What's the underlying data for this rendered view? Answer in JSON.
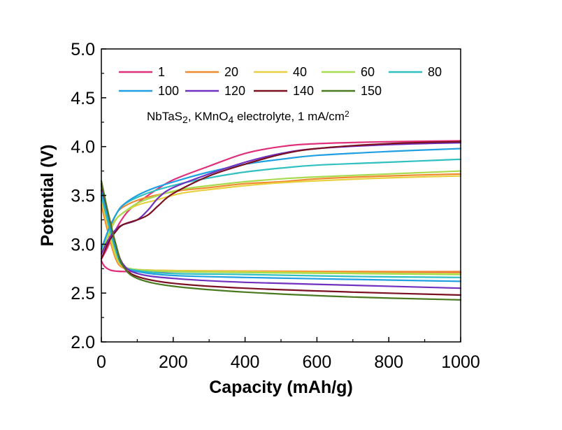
{
  "chart_data": {
    "type": "line",
    "title": "",
    "annotation": {
      "parts": [
        {
          "t": "NbTaS",
          "sub": false
        },
        {
          "t": "2",
          "sub": true
        },
        {
          "t": ", KMnO",
          "sub": false
        },
        {
          "t": "4",
          "sub": true
        },
        {
          "t": " electrolyte, 1 mA/cm",
          "sub": false
        },
        {
          "t": "2",
          "sup": true
        }
      ]
    },
    "xlabel": "Capacity (mAh/g)",
    "ylabel": "Potential (V)",
    "xlim": [
      0,
      1000
    ],
    "ylim": [
      2.0,
      5.0
    ],
    "xticks": [
      0,
      200,
      400,
      600,
      800,
      1000
    ],
    "yticks": [
      "2.0",
      "2.5",
      "3.0",
      "3.5",
      "4.0",
      "4.5",
      "5.0"
    ],
    "grid": false,
    "legend_placement": "top-left",
    "series": [
      {
        "name": "1",
        "color": "#e0307a",
        "charge": [
          [
            0,
            2.85
          ],
          [
            15,
            2.95
          ],
          [
            40,
            3.15
          ],
          [
            70,
            3.32
          ],
          [
            100,
            3.42
          ],
          [
            150,
            3.55
          ],
          [
            200,
            3.66
          ],
          [
            300,
            3.8
          ],
          [
            400,
            3.93
          ],
          [
            500,
            4.0
          ],
          [
            600,
            4.03
          ],
          [
            800,
            4.05
          ],
          [
            1000,
            4.06
          ]
        ],
        "discharge": [
          [
            0,
            2.83
          ],
          [
            10,
            2.77
          ],
          [
            30,
            2.73
          ],
          [
            70,
            2.72
          ],
          [
            150,
            2.72
          ],
          [
            400,
            2.715
          ],
          [
            700,
            2.71
          ],
          [
            1000,
            2.71
          ]
        ]
      },
      {
        "name": "20",
        "color": "#f08a30",
        "charge": [
          [
            0,
            2.9
          ],
          [
            20,
            3.1
          ],
          [
            40,
            3.3
          ],
          [
            60,
            3.38
          ],
          [
            100,
            3.45
          ],
          [
            150,
            3.5
          ],
          [
            220,
            3.55
          ],
          [
            300,
            3.58
          ],
          [
            400,
            3.62
          ],
          [
            500,
            3.64
          ],
          [
            600,
            3.67
          ],
          [
            800,
            3.7
          ],
          [
            1000,
            3.72
          ]
        ],
        "discharge": [
          [
            0,
            3.4
          ],
          [
            20,
            3.1
          ],
          [
            40,
            2.85
          ],
          [
            60,
            2.76
          ],
          [
            100,
            2.74
          ],
          [
            200,
            2.73
          ],
          [
            400,
            2.725
          ],
          [
            700,
            2.72
          ],
          [
            1000,
            2.72
          ]
        ]
      },
      {
        "name": "40",
        "color": "#e8d040",
        "charge": [
          [
            0,
            2.92
          ],
          [
            20,
            3.1
          ],
          [
            40,
            3.25
          ],
          [
            60,
            3.32
          ],
          [
            100,
            3.4
          ],
          [
            150,
            3.45
          ],
          [
            220,
            3.52
          ],
          [
            300,
            3.56
          ],
          [
            400,
            3.6
          ],
          [
            500,
            3.63
          ],
          [
            600,
            3.65
          ],
          [
            800,
            3.68
          ],
          [
            1000,
            3.7
          ]
        ],
        "discharge": [
          [
            0,
            3.45
          ],
          [
            20,
            3.15
          ],
          [
            40,
            2.88
          ],
          [
            60,
            2.77
          ],
          [
            100,
            2.74
          ],
          [
            200,
            2.73
          ],
          [
            400,
            2.72
          ],
          [
            700,
            2.705
          ],
          [
            1000,
            2.7
          ]
        ]
      },
      {
        "name": "60",
        "color": "#a8dc50",
        "charge": [
          [
            0,
            2.92
          ],
          [
            20,
            3.1
          ],
          [
            40,
            3.25
          ],
          [
            60,
            3.32
          ],
          [
            100,
            3.42
          ],
          [
            150,
            3.49
          ],
          [
            220,
            3.56
          ],
          [
            300,
            3.6
          ],
          [
            400,
            3.64
          ],
          [
            500,
            3.67
          ],
          [
            600,
            3.69
          ],
          [
            800,
            3.72
          ],
          [
            1000,
            3.75
          ]
        ],
        "discharge": [
          [
            0,
            3.5
          ],
          [
            20,
            3.2
          ],
          [
            40,
            2.9
          ],
          [
            60,
            2.78
          ],
          [
            100,
            2.74
          ],
          [
            200,
            2.72
          ],
          [
            400,
            2.71
          ],
          [
            700,
            2.7
          ],
          [
            1000,
            2.69
          ]
        ]
      },
      {
        "name": "80",
        "color": "#30c0c0",
        "charge": [
          [
            0,
            2.95
          ],
          [
            20,
            3.15
          ],
          [
            40,
            3.3
          ],
          [
            60,
            3.4
          ],
          [
            100,
            3.48
          ],
          [
            150,
            3.55
          ],
          [
            220,
            3.62
          ],
          [
            300,
            3.68
          ],
          [
            400,
            3.74
          ],
          [
            500,
            3.78
          ],
          [
            600,
            3.81
          ],
          [
            800,
            3.84
          ],
          [
            1000,
            3.87
          ]
        ],
        "discharge": [
          [
            0,
            3.5
          ],
          [
            20,
            3.2
          ],
          [
            40,
            2.95
          ],
          [
            60,
            2.78
          ],
          [
            100,
            2.73
          ],
          [
            200,
            2.7
          ],
          [
            400,
            2.69
          ],
          [
            700,
            2.67
          ],
          [
            1000,
            2.66
          ]
        ]
      },
      {
        "name": "100",
        "color": "#20a0e0",
        "charge": [
          [
            0,
            2.95
          ],
          [
            20,
            3.15
          ],
          [
            40,
            3.3
          ],
          [
            60,
            3.4
          ],
          [
            100,
            3.5
          ],
          [
            150,
            3.58
          ],
          [
            220,
            3.66
          ],
          [
            300,
            3.74
          ],
          [
            400,
            3.82
          ],
          [
            500,
            3.87
          ],
          [
            600,
            3.91
          ],
          [
            800,
            3.95
          ],
          [
            1000,
            3.98
          ]
        ],
        "discharge": [
          [
            0,
            3.55
          ],
          [
            20,
            3.25
          ],
          [
            40,
            2.95
          ],
          [
            60,
            2.78
          ],
          [
            100,
            2.72
          ],
          [
            200,
            2.68
          ],
          [
            400,
            2.66
          ],
          [
            700,
            2.64
          ],
          [
            1000,
            2.62
          ]
        ]
      },
      {
        "name": "120",
        "color": "#7030c0",
        "charge": [
          [
            0,
            2.9
          ],
          [
            20,
            3.05
          ],
          [
            40,
            3.15
          ],
          [
            60,
            3.2
          ],
          [
            100,
            3.25
          ],
          [
            130,
            3.35
          ],
          [
            160,
            3.48
          ],
          [
            200,
            3.58
          ],
          [
            300,
            3.72
          ],
          [
            400,
            3.84
          ],
          [
            500,
            3.93
          ],
          [
            600,
            3.98
          ],
          [
            800,
            4.02
          ],
          [
            1000,
            4.04
          ]
        ],
        "discharge": [
          [
            0,
            3.6
          ],
          [
            20,
            3.3
          ],
          [
            40,
            3.0
          ],
          [
            60,
            2.8
          ],
          [
            100,
            2.7
          ],
          [
            200,
            2.65
          ],
          [
            400,
            2.61
          ],
          [
            700,
            2.58
          ],
          [
            1000,
            2.55
          ]
        ]
      },
      {
        "name": "140",
        "color": "#7a1020",
        "charge": [
          [
            0,
            2.85
          ],
          [
            20,
            3.02
          ],
          [
            40,
            3.13
          ],
          [
            60,
            3.2
          ],
          [
            100,
            3.25
          ],
          [
            130,
            3.3
          ],
          [
            160,
            3.4
          ],
          [
            200,
            3.52
          ],
          [
            300,
            3.7
          ],
          [
            400,
            3.82
          ],
          [
            500,
            3.92
          ],
          [
            600,
            3.98
          ],
          [
            800,
            4.03
          ],
          [
            1000,
            4.05
          ]
        ],
        "discharge": [
          [
            0,
            3.62
          ],
          [
            20,
            3.3
          ],
          [
            40,
            3.0
          ],
          [
            60,
            2.78
          ],
          [
            100,
            2.67
          ],
          [
            200,
            2.6
          ],
          [
            400,
            2.55
          ],
          [
            700,
            2.51
          ],
          [
            1000,
            2.48
          ]
        ]
      },
      {
        "name": "150",
        "color": "#4a7a20",
        "charge": [],
        "discharge": [
          [
            0,
            3.65
          ],
          [
            20,
            3.3
          ],
          [
            40,
            3.0
          ],
          [
            60,
            2.78
          ],
          [
            100,
            2.65
          ],
          [
            200,
            2.57
          ],
          [
            400,
            2.51
          ],
          [
            700,
            2.46
          ],
          [
            1000,
            2.43
          ]
        ]
      }
    ]
  }
}
